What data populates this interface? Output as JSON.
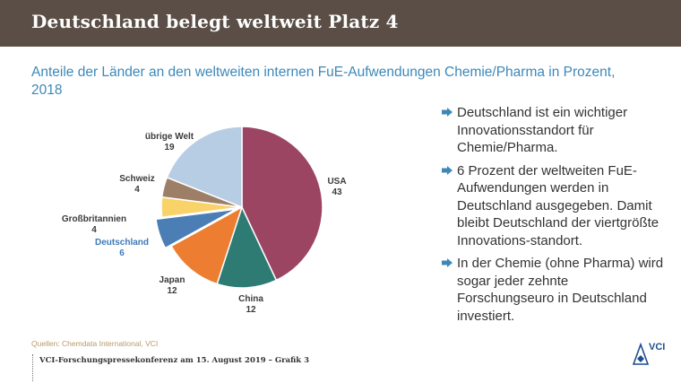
{
  "header": {
    "title": "Deutschland belegt weltweit Platz 4"
  },
  "subtitle": "Anteile der Länder an den weltweiten internen FuE-Aufwendungen Chemie/Pharma in Prozent, 2018",
  "chart_data": {
    "type": "pie",
    "title": "Anteile der Länder an den weltweiten internen FuE-Aufwendungen Chemie/Pharma in Prozent, 2018",
    "unit": "Prozent",
    "slices": [
      {
        "label": "USA",
        "value": 43,
        "value_text": "43",
        "color": "#9b4563",
        "highlight": false
      },
      {
        "label": "China",
        "value": 12,
        "value_text": "12",
        "color": "#2e7b74",
        "highlight": false
      },
      {
        "label": "Japan",
        "value": 12,
        "value_text": "12",
        "color": "#ed7d31",
        "highlight": false
      },
      {
        "label": "Deutschland",
        "value": 6,
        "value_text": "6",
        "color": "#4a7eb5",
        "highlight": true,
        "exploded": true
      },
      {
        "label": "Großbritannien",
        "value": 4,
        "value_text": "4",
        "color": "#f9d36a",
        "highlight": false
      },
      {
        "label": "Schweiz",
        "value": 4,
        "value_text": "4",
        "color": "#9d7f68",
        "highlight": false
      },
      {
        "label": "übrige Welt",
        "value": 19,
        "value_text": "19",
        "color": "#b7cde3",
        "highlight": false
      }
    ],
    "start_position": "top",
    "direction": "clockwise"
  },
  "bullets": [
    {
      "text": "Deutschland ist ein wichtiger Innovationsstandort für Chemie/Pharma."
    },
    {
      "text": "6 Prozent der weltweiten FuE-Aufwendungen werden in Deutschland ausgegeben. Damit bleibt Deutschland der viertgrößte Innovations-standort."
    },
    {
      "text": "In der Chemie (ohne Pharma) wird sogar jeder zehnte Forschungseuro in Deutschland investiert."
    }
  ],
  "source": "Quellen: Chemdata International, VCI",
  "footer": {
    "text": "VCI-Forschungspressekonferenz am 15. August 2019 – Grafik 3"
  },
  "logo": {
    "text": "VCI"
  },
  "colors": {
    "header_bg": "#5a4e46",
    "subtitle": "#3d88b8",
    "bullet_arrow": "#3d88b8",
    "source": "#b89a6a"
  }
}
